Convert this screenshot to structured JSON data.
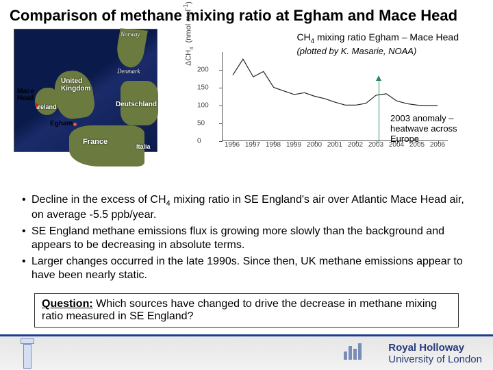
{
  "title": "Comparison of methane mixing ratio at Egham and Mace Head",
  "map": {
    "labels": {
      "norway": "Norway",
      "uk": "United\nKingdom",
      "denmark": "Denmark",
      "ireland": "Ireland",
      "deutschland": "Deutschland",
      "france": "France",
      "italia": "Italia"
    },
    "callouts": {
      "macehead": "Mace\nHead",
      "egham": "Egham"
    },
    "dot_colors": {
      "macehead": "#d62020",
      "egham": "#f05a28"
    }
  },
  "chart": {
    "type": "line",
    "title_html": "CH<sub>4</sub> mixing ratio Egham – Mace Head",
    "subtitle": "(plotted by K. Masarie, NOAA)",
    "ylabel_html": "ΔCH<sub>4</sub>  (nmol mol<sup>-1</sup>)",
    "xlim": [
      1995.5,
      2006.5
    ],
    "ylim": [
      0,
      250
    ],
    "yticks": [
      0,
      50,
      100,
      150,
      200
    ],
    "xticks": [
      1996,
      1997,
      1998,
      1999,
      2000,
      2001,
      2002,
      2003,
      2004,
      2005,
      2006
    ],
    "line_color": "#222222",
    "line_width": 1.2,
    "background_color": "#ffffff",
    "data": [
      [
        1996.0,
        185
      ],
      [
        1996.5,
        230
      ],
      [
        1997.0,
        180
      ],
      [
        1997.5,
        195
      ],
      [
        1998.0,
        150
      ],
      [
        1998.5,
        140
      ],
      [
        1999.0,
        130
      ],
      [
        1999.5,
        135
      ],
      [
        2000.0,
        125
      ],
      [
        2000.5,
        118
      ],
      [
        2001.0,
        108
      ],
      [
        2001.5,
        100
      ],
      [
        2002.0,
        100
      ],
      [
        2002.5,
        105
      ],
      [
        2003.0,
        128
      ],
      [
        2003.5,
        132
      ],
      [
        2004.0,
        112
      ],
      [
        2004.5,
        104
      ],
      [
        2005.0,
        100
      ],
      [
        2005.5,
        98
      ],
      [
        2006.0,
        98
      ]
    ],
    "anomaly_marker": {
      "x": 2003.2,
      "arrow_color": "#2a8a5a"
    },
    "anomaly_text": "2003 anomaly –\nheatwave across\nEurope"
  },
  "bullets": [
    "Decline in the excess of CH<sub>4</sub> mixing ratio in SE England's air over Atlantic Mace Head air, on average -5.5 ppb/year.",
    "SE England methane emissions flux is growing more slowly than the background and appears to be decreasing in absolute terms.",
    "Larger changes occurred in the late 1990s. Since then, UK methane emissions appear to have been nearly static."
  ],
  "question": {
    "label": "Question:",
    "text": " Which sources have changed to drive the decrease in methane mixing ratio measured in SE England?"
  },
  "footer": {
    "brand": "Royal Holloway",
    "sub": "University of London",
    "accent_color": "#1c3d8f"
  }
}
